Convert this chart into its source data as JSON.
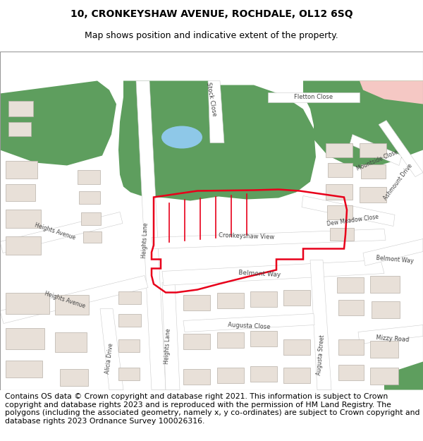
{
  "title_line1": "10, CRONKEYSHAW AVENUE, ROCHDALE, OL12 6SQ",
  "title_line2": "Map shows position and indicative extent of the property.",
  "footer_text": "Contains OS data © Crown copyright and database right 2021. This information is subject to Crown copyright and database rights 2023 and is reproduced with the permission of HM Land Registry. The polygons (including the associated geometry, namely x, y co-ordinates) are subject to Crown copyright and database rights 2023 Ordnance Survey 100026316.",
  "bg_color": "#ffffff",
  "map_bg": "#f0ece6",
  "green_color": "#5e9e5e",
  "green_dark": "#4a8a4a",
  "water_color": "#8ec8e8",
  "pink_color": "#f5c8c4",
  "road_color": "#ffffff",
  "road_edge": "#cccccc",
  "building_face": "#e8e0d8",
  "building_edge": "#b8b0a8",
  "highlight_red": "#e8001a",
  "highlight_fill": "none",
  "title_fontsize": 10,
  "subtitle_fontsize": 9,
  "footer_fontsize": 7.8,
  "label_fontsize": 6.0,
  "label_color": "#444444"
}
